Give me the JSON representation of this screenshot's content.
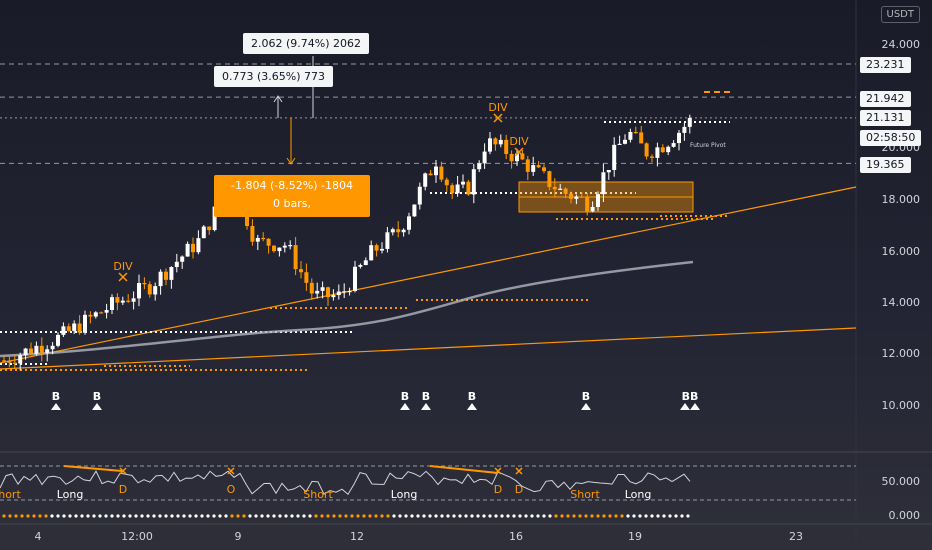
{
  "currency": "USDT",
  "y_axis_labels": [
    "24.000",
    "20.000",
    "18.000",
    "16.000",
    "14.000",
    "12.000",
    "10.000"
  ],
  "price_labels": [
    {
      "text": "23.231",
      "value": 23.231
    },
    {
      "text": "21.942",
      "value": 21.942
    },
    {
      "text": "21.131",
      "value": 21.131
    },
    {
      "text": "02:58:50",
      "value": 20.3
    },
    {
      "text": "19.365",
      "value": 19.365
    }
  ],
  "indicator_axis_labels": [
    "50.000",
    "0.000"
  ],
  "x_axis_labels": [
    "4",
    "12:00",
    "9",
    "12",
    "16",
    "19",
    "23"
  ],
  "measurements": {
    "top": "2.062 (9.74%) 2062",
    "mid": "0.773 (3.65%) 773",
    "orange_line1": "-1.804 (-8.52%) -1804",
    "orange_line2": "0 bars,"
  },
  "annotations": {
    "div": "DIV",
    "future_pivot": "Future Pivot",
    "buy": "B",
    "buy_double": "BB"
  },
  "oscillator_labels": {
    "short": "Short",
    "long": "Long",
    "d": "D",
    "o": "O"
  },
  "colors": {
    "background": "#1b1c28",
    "orange": "#ff9800",
    "candle_up": "#ffffff",
    "candle_down": "#ff9800",
    "ma": "#9598a1",
    "label_bg": "#f4f5f7"
  }
}
